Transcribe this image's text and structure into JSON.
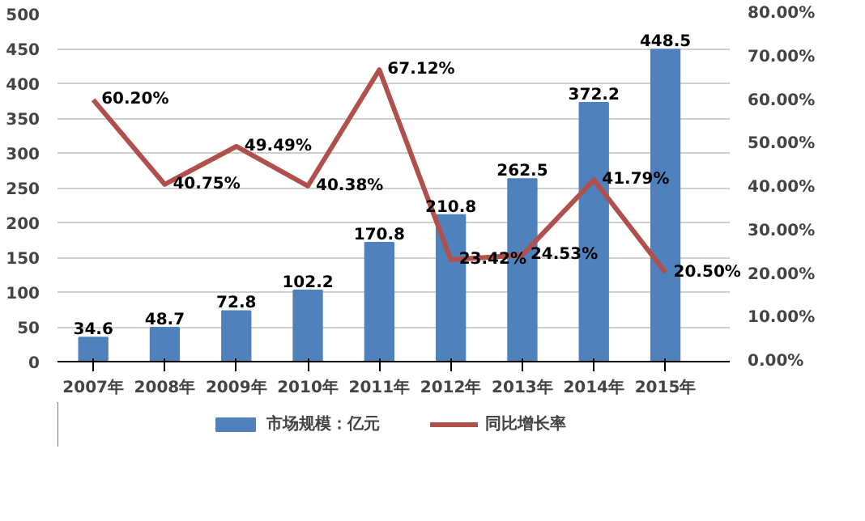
{
  "chart_data": {
    "type": "bar",
    "categories": [
      "2007年",
      "2008年",
      "2009年",
      "2010年",
      "2011年",
      "2012年",
      "2013年",
      "2014年",
      "2015年"
    ],
    "series": [
      {
        "name": "市场规模：亿元",
        "color": "#4f81bd",
        "values": [
          34.6,
          48.7,
          72.8,
          102.2,
          170.8,
          210.8,
          262.5,
          372.2,
          448.5
        ],
        "value_labels": [
          "34.6",
          "48.7",
          "72.8",
          "102.2",
          "170.8",
          "210.8",
          "262.5",
          "372.2",
          "448.5"
        ]
      },
      {
        "name": "同比增长率",
        "type": "line",
        "axis": "y2",
        "color": "#b0504d",
        "values": [
          60.2,
          40.75,
          49.49,
          40.38,
          67.12,
          23.42,
          24.53,
          41.79,
          20.5
        ],
        "value_labels": [
          "60.20%",
          "40.75%",
          "49.49%",
          "40.38%",
          "67.12%",
          "23.42%",
          "24.53%",
          "41.79%",
          "20.50%"
        ]
      }
    ],
    "ylim": [
      0,
      500
    ],
    "yticks": [
      0,
      50,
      100,
      150,
      200,
      250,
      300,
      350,
      400,
      450,
      500
    ],
    "y2lim": [
      0,
      80
    ],
    "y2ticks": [
      {
        "value": 0,
        "label": "0.00%"
      },
      {
        "value": 10,
        "label": "10.00%"
      },
      {
        "value": 20,
        "label": "20.00%"
      },
      {
        "value": 30,
        "label": "30.00%"
      },
      {
        "value": 40,
        "label": "40.00%"
      },
      {
        "value": 50,
        "label": "50.00%"
      },
      {
        "value": 60,
        "label": "60.00%"
      },
      {
        "value": 70,
        "label": "70.00%"
      },
      {
        "value": 80,
        "label": "80.00%"
      }
    ],
    "grid": "y",
    "legend": "bottom",
    "marker": "none",
    "line_style": "solid"
  }
}
